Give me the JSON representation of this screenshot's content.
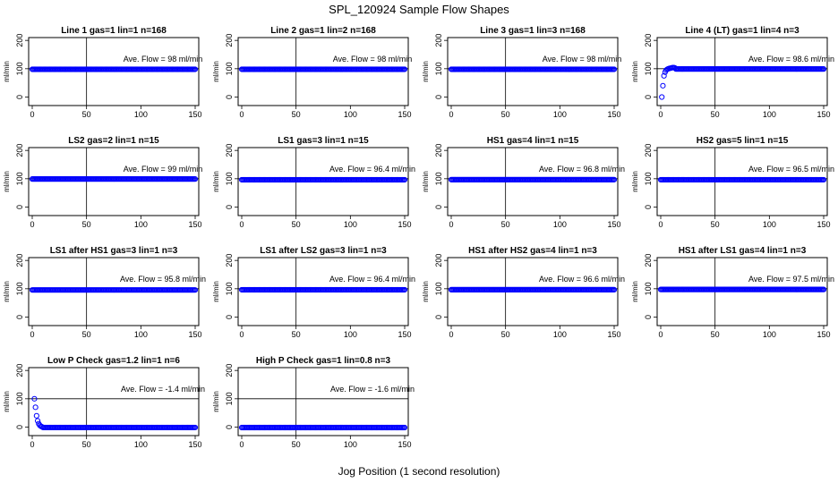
{
  "figure": {
    "title": "SPL_120924  Sample Flow Shapes",
    "xlabel": "Jog Position (1 second resolution)"
  },
  "chart_data": [
    {
      "type": "scatter",
      "title": "Line 1 gas=1 lin=1 n=168",
      "ylabel": "ml/min",
      "annotation": "Ave. Flow =  98  ml/min",
      "xlim": [
        0,
        150
      ],
      "ylim": [
        -30,
        210
      ],
      "x_ticks": [
        0,
        50,
        100,
        150
      ],
      "y_ticks": [
        0,
        100,
        200
      ],
      "vline_x": 50,
      "hline_y": 100,
      "marker_color": "#0000ff",
      "series": [
        {
          "constant": {
            "from": 0,
            "to": 150,
            "y": 98
          }
        }
      ]
    },
    {
      "type": "scatter",
      "title": "Line 2 gas=1 lin=2 n=168",
      "ylabel": "ml/min",
      "annotation": "Ave. Flow =  98  ml/min",
      "xlim": [
        0,
        150
      ],
      "ylim": [
        -30,
        210
      ],
      "x_ticks": [
        0,
        50,
        100,
        150
      ],
      "y_ticks": [
        0,
        100,
        200
      ],
      "vline_x": 50,
      "hline_y": 100,
      "marker_color": "#0000ff",
      "series": [
        {
          "constant": {
            "from": 0,
            "to": 150,
            "y": 98
          }
        }
      ]
    },
    {
      "type": "scatter",
      "title": "Line 3 gas=1 lin=3 n=168",
      "ylabel": "ml/min",
      "annotation": "Ave. Flow =  98  ml/min",
      "xlim": [
        0,
        150
      ],
      "ylim": [
        -30,
        210
      ],
      "x_ticks": [
        0,
        50,
        100,
        150
      ],
      "y_ticks": [
        0,
        100,
        200
      ],
      "vline_x": 50,
      "hline_y": 100,
      "marker_color": "#0000ff",
      "series": [
        {
          "constant": {
            "from": 0,
            "to": 150,
            "y": 98
          }
        }
      ]
    },
    {
      "type": "scatter",
      "title": "Line 4 (LT) gas=1 lin=4 n=3",
      "ylabel": "ml/min",
      "annotation": "Ave. Flow =  98.6  ml/min",
      "xlim": [
        0,
        150
      ],
      "ylim": [
        -30,
        210
      ],
      "x_ticks": [
        0,
        50,
        100,
        150
      ],
      "y_ticks": [
        0,
        100,
        200
      ],
      "vline_x": 50,
      "hline_y": 100,
      "marker_color": "#0000ff",
      "series": [
        {
          "points": [
            [
              1,
              0
            ],
            [
              2,
              40
            ],
            [
              3,
              75
            ],
            [
              4,
              88
            ],
            [
              5,
              95
            ],
            [
              6,
              98
            ],
            [
              7,
              100
            ],
            [
              8,
              101
            ],
            [
              9,
              102
            ],
            [
              10,
              103
            ],
            [
              11,
              104
            ],
            [
              12,
              104
            ],
            [
              13,
              103
            ]
          ],
          "constant": {
            "from": 14,
            "to": 150,
            "y": 99
          }
        }
      ]
    },
    {
      "type": "scatter",
      "title": "LS2 gas=2 lin=1 n=15",
      "ylabel": "ml/min",
      "annotation": "Ave. Flow =  99  ml/min",
      "xlim": [
        0,
        150
      ],
      "ylim": [
        -30,
        210
      ],
      "x_ticks": [
        0,
        50,
        100,
        150
      ],
      "y_ticks": [
        0,
        100,
        200
      ],
      "vline_x": 50,
      "hline_y": 100,
      "marker_color": "#0000ff",
      "series": [
        {
          "constant": {
            "from": 0,
            "to": 150,
            "y": 99
          }
        }
      ]
    },
    {
      "type": "scatter",
      "title": "LS1 gas=3 lin=1 n=15",
      "ylabel": "ml/min",
      "annotation": "Ave. Flow =  96.4  ml/min",
      "xlim": [
        0,
        150
      ],
      "ylim": [
        -30,
        210
      ],
      "x_ticks": [
        0,
        50,
        100,
        150
      ],
      "y_ticks": [
        0,
        100,
        200
      ],
      "vline_x": 50,
      "hline_y": 100,
      "marker_color": "#0000ff",
      "series": [
        {
          "constant": {
            "from": 0,
            "to": 150,
            "y": 96.4
          }
        }
      ]
    },
    {
      "type": "scatter",
      "title": "HS1 gas=4 lin=1 n=15",
      "ylabel": "ml/min",
      "annotation": "Ave. Flow =  96.8  ml/min",
      "xlim": [
        0,
        150
      ],
      "ylim": [
        -30,
        210
      ],
      "x_ticks": [
        0,
        50,
        100,
        150
      ],
      "y_ticks": [
        0,
        100,
        200
      ],
      "vline_x": 50,
      "hline_y": 100,
      "marker_color": "#0000ff",
      "series": [
        {
          "constant": {
            "from": 0,
            "to": 150,
            "y": 96.8
          }
        }
      ]
    },
    {
      "type": "scatter",
      "title": "HS2 gas=5 lin=1 n=15",
      "ylabel": "ml/min",
      "annotation": "Ave. Flow =  96.5  ml/min",
      "xlim": [
        0,
        150
      ],
      "ylim": [
        -30,
        210
      ],
      "x_ticks": [
        0,
        50,
        100,
        150
      ],
      "y_ticks": [
        0,
        100,
        200
      ],
      "vline_x": 50,
      "hline_y": 100,
      "marker_color": "#0000ff",
      "series": [
        {
          "constant": {
            "from": 0,
            "to": 150,
            "y": 96.5
          }
        }
      ]
    },
    {
      "type": "scatter",
      "title": "LS1 after HS1 gas=3 lin=1 n=3",
      "ylabel": "ml/min",
      "annotation": "Ave. Flow =  95.8  ml/min",
      "xlim": [
        0,
        150
      ],
      "ylim": [
        -30,
        210
      ],
      "x_ticks": [
        0,
        50,
        100,
        150
      ],
      "y_ticks": [
        0,
        100,
        200
      ],
      "vline_x": 50,
      "hline_y": 100,
      "marker_color": "#0000ff",
      "series": [
        {
          "constant": {
            "from": 0,
            "to": 150,
            "y": 95.8
          }
        }
      ]
    },
    {
      "type": "scatter",
      "title": "LS1 after LS2 gas=3 lin=1 n=3",
      "ylabel": "ml/min",
      "annotation": "Ave. Flow =  96.4  ml/min",
      "xlim": [
        0,
        150
      ],
      "ylim": [
        -30,
        210
      ],
      "x_ticks": [
        0,
        50,
        100,
        150
      ],
      "y_ticks": [
        0,
        100,
        200
      ],
      "vline_x": 50,
      "hline_y": 100,
      "marker_color": "#0000ff",
      "series": [
        {
          "constant": {
            "from": 0,
            "to": 150,
            "y": 96.4
          }
        }
      ]
    },
    {
      "type": "scatter",
      "title": "HS1 after HS2 gas=4 lin=1 n=3",
      "ylabel": "ml/min",
      "annotation": "Ave. Flow =  96.6  ml/min",
      "xlim": [
        0,
        150
      ],
      "ylim": [
        -30,
        210
      ],
      "x_ticks": [
        0,
        50,
        100,
        150
      ],
      "y_ticks": [
        0,
        100,
        200
      ],
      "vline_x": 50,
      "hline_y": 100,
      "marker_color": "#0000ff",
      "series": [
        {
          "constant": {
            "from": 0,
            "to": 150,
            "y": 96.6
          }
        }
      ]
    },
    {
      "type": "scatter",
      "title": "HS1 after LS1 gas=4 lin=1 n=3",
      "ylabel": "ml/min",
      "annotation": "Ave. Flow =  97.5  ml/min",
      "xlim": [
        0,
        150
      ],
      "ylim": [
        -30,
        210
      ],
      "x_ticks": [
        0,
        50,
        100,
        150
      ],
      "y_ticks": [
        0,
        100,
        200
      ],
      "vline_x": 50,
      "hline_y": 100,
      "marker_color": "#0000ff",
      "series": [
        {
          "constant": {
            "from": 0,
            "to": 150,
            "y": 97.5
          }
        }
      ]
    },
    {
      "type": "scatter",
      "title": "Low P Check gas=1.2 lin=1 n=6",
      "ylabel": "ml/min",
      "annotation": "Ave. Flow =  -1.4  ml/min",
      "xlim": [
        0,
        150
      ],
      "ylim": [
        -30,
        210
      ],
      "x_ticks": [
        0,
        50,
        100,
        150
      ],
      "y_ticks": [
        0,
        100,
        200
      ],
      "vline_x": 50,
      "hline_y": 100,
      "marker_color": "#0000ff",
      "series": [
        {
          "points": [
            [
              2,
              100
            ],
            [
              3,
              70
            ],
            [
              4,
              40
            ],
            [
              5,
              22
            ],
            [
              6,
              12
            ],
            [
              7,
              6
            ],
            [
              8,
              3
            ],
            [
              9,
              1
            ]
          ],
          "constant": {
            "from": 10,
            "to": 150,
            "y": -1.4
          }
        }
      ]
    },
    {
      "type": "scatter",
      "title": "High P Check gas=1 lin=0.8 n=3",
      "ylabel": "ml/min",
      "annotation": "Ave. Flow =  -1.6  ml/min",
      "xlim": [
        0,
        150
      ],
      "ylim": [
        -30,
        210
      ],
      "x_ticks": [
        0,
        50,
        100,
        150
      ],
      "y_ticks": [
        0,
        100,
        200
      ],
      "vline_x": 50,
      "hline_y": 100,
      "marker_color": "#0000ff",
      "series": [
        {
          "constant": {
            "from": 0,
            "to": 150,
            "y": -1.6
          }
        }
      ]
    }
  ]
}
